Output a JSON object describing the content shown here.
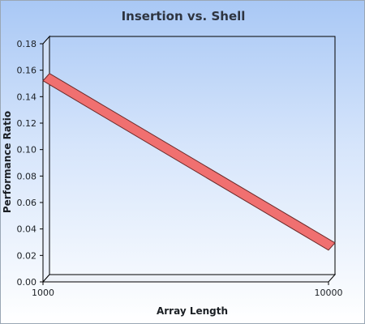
{
  "chart_data": {
    "type": "line",
    "title": "Insertion vs. Shell",
    "xlabel": "Array Length",
    "ylabel": "Performance Ratio",
    "x_scale": "log",
    "xlim": [
      1000,
      10000
    ],
    "ylim": [
      0,
      0.18
    ],
    "x_ticks": [
      "1000",
      "10000"
    ],
    "y_ticks": [
      "0.00",
      "0.02",
      "0.04",
      "0.06",
      "0.08",
      "0.10",
      "0.12",
      "0.14",
      "0.16",
      "0.18"
    ],
    "series": [
      {
        "color": "#f07070",
        "x": [
          1000,
          10000
        ],
        "y": [
          0.152,
          0.024
        ]
      }
    ],
    "grid": false,
    "legend": "none"
  }
}
